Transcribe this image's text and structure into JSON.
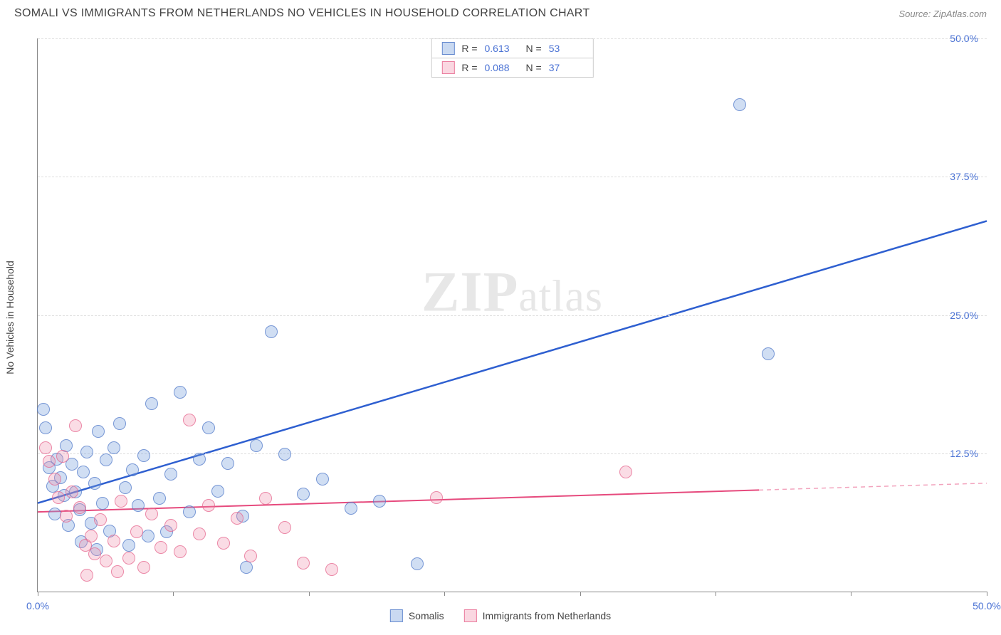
{
  "title": "SOMALI VS IMMIGRANTS FROM NETHERLANDS NO VEHICLES IN HOUSEHOLD CORRELATION CHART",
  "source": "Source: ZipAtlas.com",
  "watermark": {
    "big": "ZIP",
    "small": "atlas"
  },
  "chart": {
    "type": "scatter",
    "y_label": "No Vehicles in Household",
    "xlim": [
      0,
      50
    ],
    "ylim": [
      0,
      50
    ],
    "x_ticks": [
      0,
      7.14,
      14.28,
      21.43,
      28.57,
      35.71,
      42.85,
      50
    ],
    "x_tick_labels": {
      "0": "0.0%",
      "50": "50.0%"
    },
    "y_ticks": [
      12.5,
      25.0,
      37.5,
      50.0
    ],
    "y_tick_labels": [
      "12.5%",
      "25.0%",
      "37.5%",
      "50.0%"
    ],
    "grid_color": "#dddddd",
    "axis_color": "#888888",
    "background_color": "#ffffff",
    "tick_label_color": "#4a72d4",
    "axis_label_color": "#444444",
    "point_radius": 9,
    "series": [
      {
        "name": "Somalis",
        "color_fill": "rgba(120,160,220,0.35)",
        "color_stroke": "rgba(80,120,200,0.7)",
        "R": "0.613",
        "N": "53",
        "trend": {
          "x1": 0,
          "y1": 8.0,
          "x2": 50,
          "y2": 33.5,
          "stroke": "#2e5fd0",
          "width": 2.5,
          "dash_after_x": null
        },
        "points": [
          [
            0.3,
            16.5
          ],
          [
            0.4,
            14.8
          ],
          [
            0.6,
            11.2
          ],
          [
            0.8,
            9.5
          ],
          [
            1.0,
            12.0
          ],
          [
            1.2,
            10.3
          ],
          [
            1.4,
            8.7
          ],
          [
            1.5,
            13.2
          ],
          [
            1.8,
            11.5
          ],
          [
            2.0,
            9.0
          ],
          [
            2.2,
            7.4
          ],
          [
            2.4,
            10.8
          ],
          [
            2.6,
            12.6
          ],
          [
            2.8,
            6.2
          ],
          [
            3.0,
            9.8
          ],
          [
            3.2,
            14.5
          ],
          [
            3.4,
            8.0
          ],
          [
            3.6,
            11.9
          ],
          [
            3.8,
            5.5
          ],
          [
            4.0,
            13.0
          ],
          [
            4.3,
            15.2
          ],
          [
            4.6,
            9.4
          ],
          [
            5.0,
            11.0
          ],
          [
            5.3,
            7.8
          ],
          [
            5.6,
            12.3
          ],
          [
            6.0,
            17.0
          ],
          [
            6.4,
            8.4
          ],
          [
            7.0,
            10.6
          ],
          [
            7.5,
            18.0
          ],
          [
            8.0,
            7.2
          ],
          [
            8.5,
            12.0
          ],
          [
            9.0,
            14.8
          ],
          [
            9.5,
            9.1
          ],
          [
            10.0,
            11.6
          ],
          [
            10.8,
            6.8
          ],
          [
            11.5,
            13.2
          ],
          [
            12.3,
            23.5
          ],
          [
            13.0,
            12.4
          ],
          [
            14.0,
            8.8
          ],
          [
            15.0,
            10.2
          ],
          [
            16.5,
            7.5
          ],
          [
            18.0,
            8.2
          ],
          [
            20.0,
            2.5
          ],
          [
            37.0,
            44.0
          ],
          [
            38.5,
            21.5
          ],
          [
            5.8,
            5.0
          ],
          [
            4.8,
            4.2
          ],
          [
            3.1,
            3.8
          ],
          [
            2.3,
            4.5
          ],
          [
            6.8,
            5.4
          ],
          [
            1.6,
            6.0
          ],
          [
            0.9,
            7.0
          ],
          [
            11.0,
            2.2
          ]
        ]
      },
      {
        "name": "Immigrants from Netherlands",
        "color_fill": "rgba(240,140,170,0.3)",
        "color_stroke": "rgba(230,100,140,0.7)",
        "R": "0.088",
        "N": "37",
        "trend": {
          "x1": 0,
          "y1": 7.2,
          "x2": 50,
          "y2": 9.8,
          "stroke": "#e64a7d",
          "width": 2,
          "dash_after_x": 38
        },
        "points": [
          [
            0.4,
            13.0
          ],
          [
            0.6,
            11.8
          ],
          [
            0.9,
            10.2
          ],
          [
            1.1,
            8.5
          ],
          [
            1.3,
            12.2
          ],
          [
            1.5,
            6.8
          ],
          [
            1.8,
            9.0
          ],
          [
            2.0,
            15.0
          ],
          [
            2.2,
            7.6
          ],
          [
            2.5,
            4.2
          ],
          [
            2.8,
            5.0
          ],
          [
            3.0,
            3.4
          ],
          [
            3.3,
            6.5
          ],
          [
            3.6,
            2.8
          ],
          [
            4.0,
            4.6
          ],
          [
            4.4,
            8.2
          ],
          [
            4.8,
            3.0
          ],
          [
            5.2,
            5.4
          ],
          [
            5.6,
            2.2
          ],
          [
            6.0,
            7.0
          ],
          [
            6.5,
            4.0
          ],
          [
            7.0,
            6.0
          ],
          [
            7.5,
            3.6
          ],
          [
            8.0,
            15.5
          ],
          [
            8.5,
            5.2
          ],
          [
            9.0,
            7.8
          ],
          [
            9.8,
            4.4
          ],
          [
            10.5,
            6.6
          ],
          [
            11.2,
            3.2
          ],
          [
            12.0,
            8.4
          ],
          [
            13.0,
            5.8
          ],
          [
            14.0,
            2.6
          ],
          [
            15.5,
            2.0
          ],
          [
            21.0,
            8.5
          ],
          [
            31.0,
            10.8
          ],
          [
            4.2,
            1.8
          ],
          [
            2.6,
            1.5
          ]
        ]
      }
    ],
    "legend_bottom": [
      {
        "swatch": "blue",
        "label": "Somalis"
      },
      {
        "swatch": "pink",
        "label": "Immigrants from Netherlands"
      }
    ]
  }
}
